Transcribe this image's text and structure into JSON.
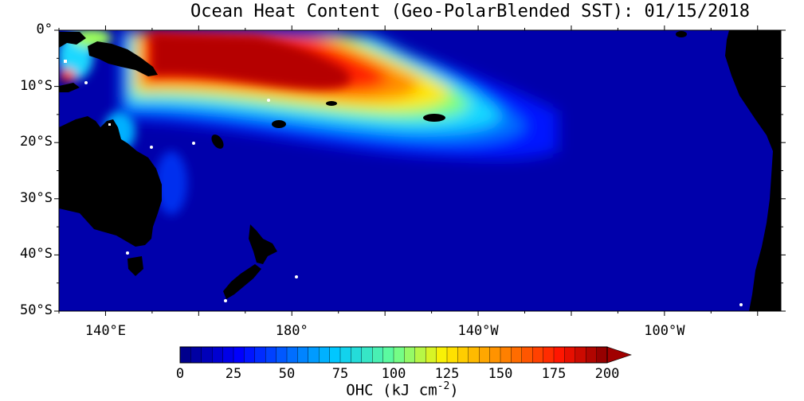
{
  "title": "Ocean Heat Content (Geo-PolarBlended SST): 01/15/2018",
  "map": {
    "lat_labels": [
      "0°",
      "10°S",
      "20°S",
      "30°S",
      "40°S",
      "50°S"
    ],
    "lat_values": [
      0,
      -10,
      -20,
      -30,
      -40,
      -50
    ],
    "lon_labels": [
      "140°E",
      "180°",
      "140°W",
      "100°W"
    ],
    "lon_values": [
      140,
      180,
      220,
      260
    ],
    "extent": {
      "lon_min": 130,
      "lon_max": 285,
      "lat_min": -50,
      "lat_max": 0
    },
    "colors": {
      "land": "#000000",
      "background": "#ffffff"
    }
  },
  "colorbar": {
    "ticks": [
      "0",
      "25",
      "50",
      "75",
      "100",
      "125",
      "150",
      "175",
      "200"
    ],
    "min": 0,
    "max": 200,
    "step": 5,
    "label_prefix": "OHC (kJ cm",
    "label_sup": "-2",
    "label_suffix": ")",
    "overflow_arrow": true
  }
}
